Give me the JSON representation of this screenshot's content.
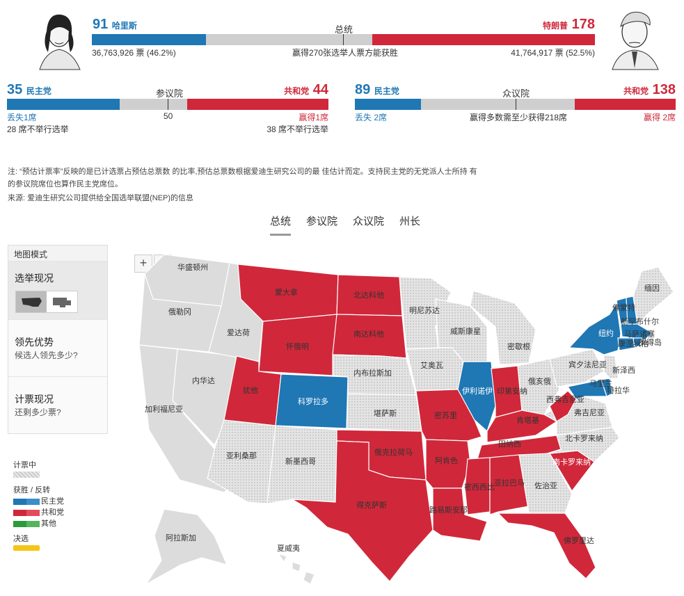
{
  "president": {
    "title": "总统",
    "dem_votes_ev": "91",
    "dem_name": "哈里斯",
    "dem_popular": "36,763,926 票 (46.2%)",
    "rep_votes_ev": "178",
    "rep_name": "特朗普",
    "rep_popular": "41,764,917 票 (52.5%)",
    "threshold_text": "赢得270张选举人票方能获胜",
    "dem_fraction": 0.2266,
    "rep_fraction": 0.4428
  },
  "senate": {
    "title": "参议院",
    "dem_count": "35",
    "dem_label": "民主党",
    "rep_count": "44",
    "rep_label": "共和党",
    "mid_label": "50",
    "dem_change": "丢失1席",
    "rep_change": "赢得1席",
    "dem_not_up": "28 席不举行选举",
    "rep_not_up": "38 席不举行选举"
  },
  "house": {
    "title": "众议院",
    "dem_count": "89",
    "dem_label": "民主党",
    "rep_count": "138",
    "rep_label": "共和党",
    "dem_change": "丢失 2席",
    "rep_change": "赢得 2席",
    "threshold_text": "赢得多数需至少获得218席"
  },
  "notes": {
    "note": "注: “预估计票率”反映的是已计选票占预估总票数 的比率,预估总票数根据爱迪生研究公司的最 佳估计而定。支持民主党的无党派人士所持 有 的参议院席位也算作民主党席位。",
    "source": "来源:  爱迪生研究公司提供给全国选举联盟(NEP)的信息"
  },
  "tabs": [
    "总统",
    "参议院",
    "众议院",
    "州长"
  ],
  "side_panel": {
    "header": "地图模式",
    "sections": [
      {
        "title": "选举现况",
        "subtitle": ""
      },
      {
        "title": "领先优势",
        "subtitle": "候选人领先多少?"
      },
      {
        "title": "计票现况",
        "subtitle": "还剩多少票?"
      }
    ]
  },
  "legend": {
    "counting": "计票中",
    "win_flip": "获胜 / 反转",
    "dem": "民主党",
    "rep": "共和党",
    "other": "其他",
    "runoff": "决选"
  },
  "zoom": {
    "plus": "+",
    "minus": "−"
  },
  "colors": {
    "dem": "#1f77b4",
    "rep": "#d0283a",
    "gray": "#dcdcdc",
    "runoff": "#f5c518",
    "other": "#2e9a3a"
  },
  "states": {
    "wa": "华盛顿州",
    "or": "俄勒冈",
    "ca": "加利福尼亚",
    "nv": "内华达",
    "id": "爱达荷",
    "mt": "蒙大拿",
    "wy": "怀俄明",
    "ut": "犹他",
    "co": "科罗拉多",
    "az": "亚利桑那",
    "nm": "新墨西哥",
    "nd": "北达科他",
    "sd": "南达科他",
    "ne": "内布拉斯加",
    "ks": "堪萨斯",
    "ok": "俄克拉荷马",
    "tx": "得克萨斯",
    "mn": "明尼苏达",
    "ia": "艾奥瓦",
    "mo": "密苏里",
    "ar": "阿肯色",
    "la": "路易斯安那",
    "wi": "威斯康星",
    "il": "伊利诺伊",
    "mi": "密歇根",
    "in": "印第安纳",
    "oh": "俄亥俄",
    "ky": "肯塔基",
    "tn": "田纳西",
    "ms": "密西西比",
    "al": "亚拉巴马",
    "ga": "佐治亚",
    "fl": "佛罗里达",
    "sc": "南卡罗来纳",
    "nc": "北卡罗来纳",
    "va": "弗吉尼亚",
    "wv": "西弗吉尼亚",
    "pa": "宾夕法尼亚",
    "ny": "纽约",
    "vt": "佛蒙特",
    "nh": "新罕布什尔",
    "me": "缅因",
    "ma": "马萨诸塞",
    "ri": "罗得岛",
    "ct": "康涅狄格",
    "nj": "新泽西",
    "de": "特拉华",
    "md": "马里兰",
    "ak": "阿拉斯加",
    "hi": "夏威夷"
  }
}
